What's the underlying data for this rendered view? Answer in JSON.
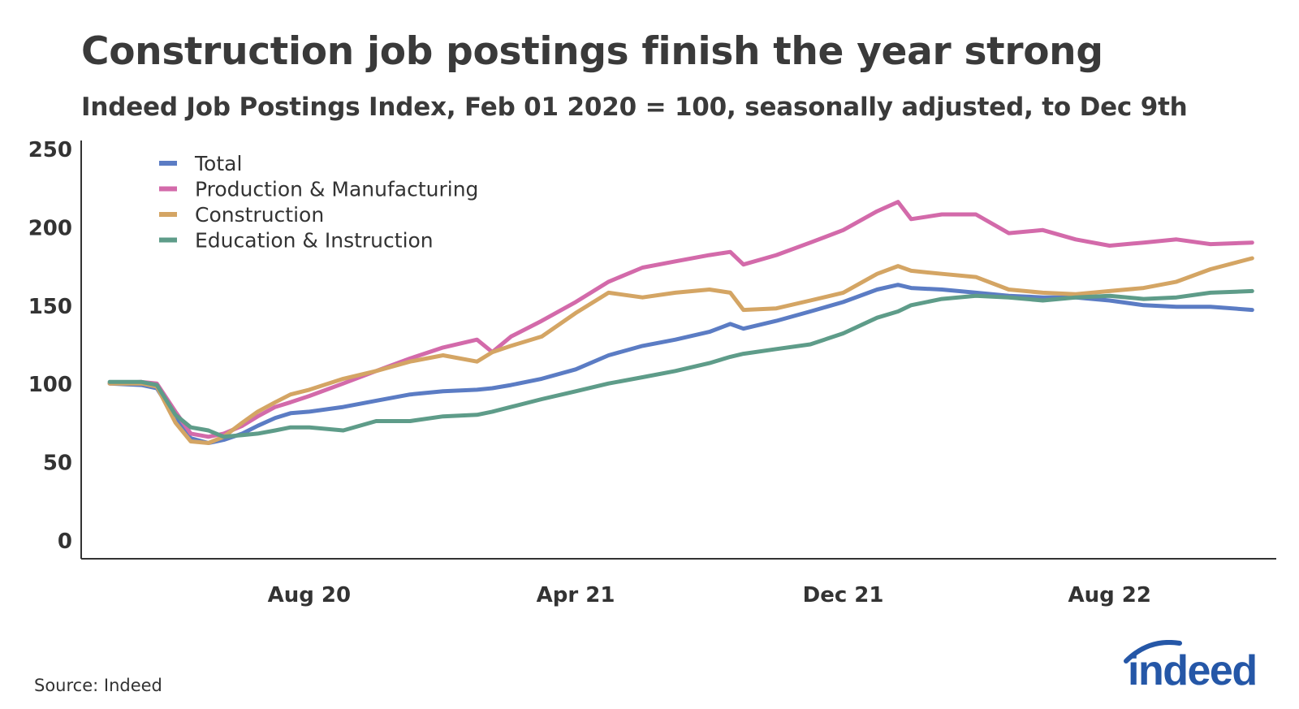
{
  "title": "Construction job postings finish the year strong",
  "subtitle": "Indeed Job Postings Index, Feb 01 2020 = 100, seasonally adjusted, to Dec 9th",
  "source": "Source: Indeed",
  "logo_text": "indeed",
  "colors": {
    "Total": "#5b7cc4",
    "Production & Manufacturing": "#d36aaa",
    "Construction": "#d4a564",
    "Education & Instruction": "#5e9c89",
    "axis": "#333333",
    "logo": "#2557a7"
  },
  "chart_data": {
    "type": "line",
    "x_unit": "date",
    "x_ticks": [
      {
        "label": "Aug 20",
        "date": "2020-08-01"
      },
      {
        "label": "Apr 21",
        "date": "2021-04-01"
      },
      {
        "label": "Dec 21",
        "date": "2021-12-01"
      },
      {
        "label": "Aug 22",
        "date": "2022-08-01"
      }
    ],
    "y_ticks": [
      0,
      50,
      100,
      150,
      200,
      250
    ],
    "ylim": [
      0,
      250
    ],
    "xlim": [
      "2020-01-06",
      "2022-12-31"
    ],
    "grid": false,
    "legend_position": "top-left",
    "series": [
      {
        "name": "Total",
        "points": [
          [
            "2020-02-01",
            100
          ],
          [
            "2020-03-01",
            99
          ],
          [
            "2020-03-15",
            97
          ],
          [
            "2020-04-01",
            78
          ],
          [
            "2020-04-15",
            65
          ],
          [
            "2020-05-01",
            62
          ],
          [
            "2020-05-15",
            64
          ],
          [
            "2020-06-01",
            68
          ],
          [
            "2020-06-15",
            73
          ],
          [
            "2020-07-01",
            78
          ],
          [
            "2020-07-15",
            81
          ],
          [
            "2020-08-01",
            82
          ],
          [
            "2020-09-01",
            85
          ],
          [
            "2020-10-01",
            89
          ],
          [
            "2020-11-01",
            93
          ],
          [
            "2020-12-01",
            95
          ],
          [
            "2021-01-01",
            96
          ],
          [
            "2021-01-15",
            97
          ],
          [
            "2021-02-01",
            99
          ],
          [
            "2021-03-01",
            103
          ],
          [
            "2021-04-01",
            109
          ],
          [
            "2021-05-01",
            118
          ],
          [
            "2021-06-01",
            124
          ],
          [
            "2021-07-01",
            128
          ],
          [
            "2021-08-01",
            133
          ],
          [
            "2021-08-20",
            138
          ],
          [
            "2021-09-01",
            135
          ],
          [
            "2021-10-01",
            140
          ],
          [
            "2021-11-01",
            146
          ],
          [
            "2021-12-01",
            152
          ],
          [
            "2022-01-01",
            160
          ],
          [
            "2022-01-20",
            163
          ],
          [
            "2022-02-01",
            161
          ],
          [
            "2022-03-01",
            160
          ],
          [
            "2022-04-01",
            158
          ],
          [
            "2022-05-01",
            156
          ],
          [
            "2022-06-01",
            155
          ],
          [
            "2022-07-01",
            155
          ],
          [
            "2022-08-01",
            153
          ],
          [
            "2022-09-01",
            150
          ],
          [
            "2022-10-01",
            149
          ],
          [
            "2022-11-01",
            149
          ],
          [
            "2022-12-09",
            147
          ]
        ]
      },
      {
        "name": "Production & Manufacturing",
        "points": [
          [
            "2020-02-01",
            100
          ],
          [
            "2020-03-01",
            101
          ],
          [
            "2020-03-15",
            100
          ],
          [
            "2020-04-01",
            82
          ],
          [
            "2020-04-15",
            68
          ],
          [
            "2020-05-01",
            66
          ],
          [
            "2020-05-15",
            68
          ],
          [
            "2020-06-01",
            73
          ],
          [
            "2020-06-15",
            79
          ],
          [
            "2020-07-01",
            85
          ],
          [
            "2020-07-15",
            88
          ],
          [
            "2020-08-01",
            92
          ],
          [
            "2020-09-01",
            100
          ],
          [
            "2020-10-01",
            108
          ],
          [
            "2020-11-01",
            116
          ],
          [
            "2020-12-01",
            123
          ],
          [
            "2021-01-01",
            128
          ],
          [
            "2021-01-15",
            120
          ],
          [
            "2021-02-01",
            130
          ],
          [
            "2021-03-01",
            140
          ],
          [
            "2021-04-01",
            152
          ],
          [
            "2021-05-01",
            165
          ],
          [
            "2021-06-01",
            174
          ],
          [
            "2021-07-01",
            178
          ],
          [
            "2021-08-01",
            182
          ],
          [
            "2021-08-20",
            184
          ],
          [
            "2021-09-01",
            176
          ],
          [
            "2021-10-01",
            182
          ],
          [
            "2021-11-01",
            190
          ],
          [
            "2021-12-01",
            198
          ],
          [
            "2022-01-01",
            210
          ],
          [
            "2022-01-20",
            216
          ],
          [
            "2022-02-01",
            205
          ],
          [
            "2022-03-01",
            208
          ],
          [
            "2022-04-01",
            208
          ],
          [
            "2022-05-01",
            196
          ],
          [
            "2022-06-01",
            198
          ],
          [
            "2022-07-01",
            192
          ],
          [
            "2022-08-01",
            188
          ],
          [
            "2022-09-01",
            190
          ],
          [
            "2022-10-01",
            192
          ],
          [
            "2022-11-01",
            189
          ],
          [
            "2022-12-09",
            190
          ]
        ]
      },
      {
        "name": "Construction",
        "points": [
          [
            "2020-02-01",
            100
          ],
          [
            "2020-03-01",
            100
          ],
          [
            "2020-03-15",
            98
          ],
          [
            "2020-04-01",
            75
          ],
          [
            "2020-04-15",
            63
          ],
          [
            "2020-05-01",
            62
          ],
          [
            "2020-05-15",
            66
          ],
          [
            "2020-06-01",
            75
          ],
          [
            "2020-06-15",
            82
          ],
          [
            "2020-07-01",
            88
          ],
          [
            "2020-07-15",
            93
          ],
          [
            "2020-08-01",
            96
          ],
          [
            "2020-09-01",
            103
          ],
          [
            "2020-10-01",
            108
          ],
          [
            "2020-11-01",
            114
          ],
          [
            "2020-12-01",
            118
          ],
          [
            "2021-01-01",
            114
          ],
          [
            "2021-01-15",
            120
          ],
          [
            "2021-02-01",
            124
          ],
          [
            "2021-03-01",
            130
          ],
          [
            "2021-04-01",
            145
          ],
          [
            "2021-05-01",
            158
          ],
          [
            "2021-06-01",
            155
          ],
          [
            "2021-07-01",
            158
          ],
          [
            "2021-08-01",
            160
          ],
          [
            "2021-08-20",
            158
          ],
          [
            "2021-09-01",
            147
          ],
          [
            "2021-10-01",
            148
          ],
          [
            "2021-11-01",
            153
          ],
          [
            "2021-12-01",
            158
          ],
          [
            "2022-01-01",
            170
          ],
          [
            "2022-01-20",
            175
          ],
          [
            "2022-02-01",
            172
          ],
          [
            "2022-03-01",
            170
          ],
          [
            "2022-04-01",
            168
          ],
          [
            "2022-05-01",
            160
          ],
          [
            "2022-06-01",
            158
          ],
          [
            "2022-07-01",
            157
          ],
          [
            "2022-08-01",
            159
          ],
          [
            "2022-09-01",
            161
          ],
          [
            "2022-10-01",
            165
          ],
          [
            "2022-11-01",
            173
          ],
          [
            "2022-12-09",
            180
          ]
        ]
      },
      {
        "name": "Education & Instruction",
        "points": [
          [
            "2020-02-01",
            101
          ],
          [
            "2020-03-01",
            101
          ],
          [
            "2020-03-15",
            99
          ],
          [
            "2020-04-01",
            80
          ],
          [
            "2020-04-15",
            72
          ],
          [
            "2020-05-01",
            70
          ],
          [
            "2020-05-15",
            66
          ],
          [
            "2020-06-01",
            67
          ],
          [
            "2020-06-15",
            68
          ],
          [
            "2020-07-01",
            70
          ],
          [
            "2020-07-15",
            72
          ],
          [
            "2020-08-01",
            72
          ],
          [
            "2020-09-01",
            70
          ],
          [
            "2020-10-01",
            76
          ],
          [
            "2020-11-01",
            76
          ],
          [
            "2020-12-01",
            79
          ],
          [
            "2021-01-01",
            80
          ],
          [
            "2021-01-15",
            82
          ],
          [
            "2021-02-01",
            85
          ],
          [
            "2021-03-01",
            90
          ],
          [
            "2021-04-01",
            95
          ],
          [
            "2021-05-01",
            100
          ],
          [
            "2021-06-01",
            104
          ],
          [
            "2021-07-01",
            108
          ],
          [
            "2021-08-01",
            113
          ],
          [
            "2021-08-20",
            117
          ],
          [
            "2021-09-01",
            119
          ],
          [
            "2021-10-01",
            122
          ],
          [
            "2021-11-01",
            125
          ],
          [
            "2021-12-01",
            132
          ],
          [
            "2022-01-01",
            142
          ],
          [
            "2022-01-20",
            146
          ],
          [
            "2022-02-01",
            150
          ],
          [
            "2022-03-01",
            154
          ],
          [
            "2022-04-01",
            156
          ],
          [
            "2022-05-01",
            155
          ],
          [
            "2022-06-01",
            153
          ],
          [
            "2022-07-01",
            155
          ],
          [
            "2022-08-01",
            156
          ],
          [
            "2022-09-01",
            154
          ],
          [
            "2022-10-01",
            155
          ],
          [
            "2022-11-01",
            158
          ],
          [
            "2022-12-09",
            159
          ]
        ]
      }
    ]
  }
}
